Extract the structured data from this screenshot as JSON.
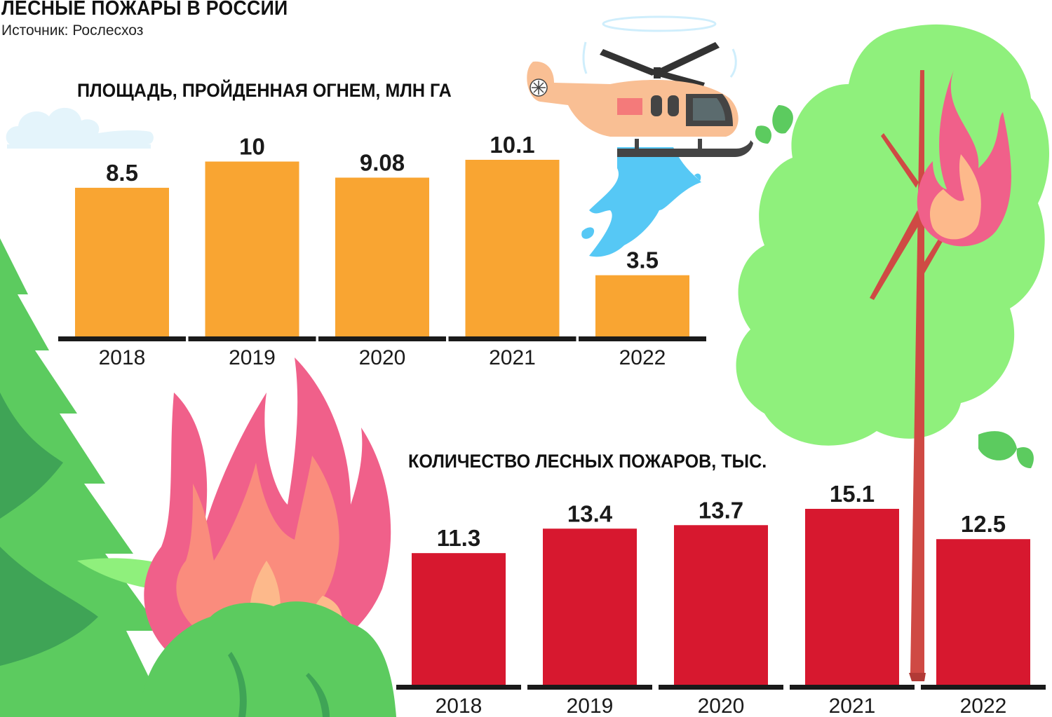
{
  "title": "ЛЕСНЫЕ ПОЖАРЫ В РОССИИ",
  "source": "Источник: Рослесхоз",
  "chart_data": [
    {
      "type": "bar",
      "title": "ПЛОЩАДЬ, ПРОЙДЕННАЯ ОГНЕМ, МЛН ГА",
      "categories": [
        "2018",
        "2019",
        "2020",
        "2021",
        "2022"
      ],
      "values": [
        8.5,
        10,
        9.08,
        10.1,
        3.5
      ],
      "labels": [
        "8.5",
        "10",
        "9.08",
        "10.1",
        "3.5"
      ],
      "bar_color": "#f9a532",
      "grid": false,
      "ylim": [
        0,
        10.1
      ]
    },
    {
      "type": "bar",
      "title": "КОЛИЧЕСТВО ЛЕСНЫХ ПОЖАРОВ, ТЫС.",
      "categories": [
        "2018",
        "2019",
        "2020",
        "2021",
        "2022"
      ],
      "values": [
        11.3,
        13.4,
        13.7,
        15.1,
        12.5
      ],
      "labels": [
        "11.3",
        "13.4",
        "13.7",
        "15.1",
        "12.5"
      ],
      "bar_color": "#d7182f",
      "grid": false,
      "ylim": [
        0,
        15.1
      ]
    }
  ],
  "colors": {
    "orange_bar": "#f9a532",
    "red_bar": "#d7182f",
    "leaf_light": "#8ff07c",
    "leaf_mid": "#5ccb5f",
    "leaf_dark": "#3fa456",
    "flame_pink": "#f0608a",
    "flame_salmon": "#fa8c7d",
    "flame_core": "#fdb98b",
    "water": "#56c8f5",
    "helicopter_body": "#f9bf94"
  }
}
